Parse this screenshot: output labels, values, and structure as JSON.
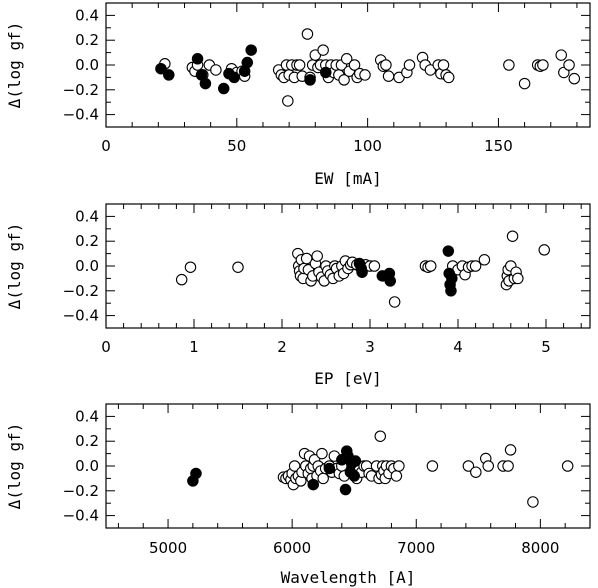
{
  "chart_data": [
    {
      "type": "scatter",
      "xlabel": "EW [mA]",
      "ylabel": "Δ(log gf)",
      "xlim": [
        0,
        185
      ],
      "ylim": [
        -0.5,
        0.5
      ],
      "xticks": [
        0,
        50,
        100,
        150
      ],
      "yticks": [
        -0.4,
        -0.2,
        0.0,
        0.2,
        0.4
      ],
      "ytick_labels": [
        "−0.4",
        "−0.2",
        "0.0",
        "0.2",
        "0.4"
      ],
      "series": [
        {
          "marker": "open",
          "x": [
            22.5,
            33,
            34,
            35,
            37,
            39.5,
            42,
            48,
            50,
            52,
            53,
            66,
            67,
            68,
            69,
            69.5,
            70,
            71,
            72,
            73,
            74,
            75,
            77,
            78,
            79,
            80,
            81,
            82,
            83,
            84,
            85,
            86,
            87,
            88,
            89,
            90,
            91,
            92,
            93,
            95,
            96,
            97,
            99,
            105,
            106,
            107,
            108,
            112,
            115,
            116,
            121,
            122,
            124,
            127,
            128,
            129,
            130,
            131,
            154,
            160,
            165,
            166,
            167,
            174,
            175,
            177,
            179
          ],
          "y": [
            0.01,
            -0.02,
            -0.05,
            0.0,
            -0.08,
            0.0,
            -0.04,
            -0.03,
            -0.06,
            -0.05,
            -0.09,
            -0.04,
            -0.08,
            -0.1,
            0.0,
            -0.29,
            -0.08,
            0.0,
            -0.1,
            0.0,
            0.0,
            -0.09,
            0.25,
            -0.1,
            0.0,
            0.08,
            -0.02,
            0.0,
            0.12,
            0.0,
            -0.1,
            0.0,
            -0.06,
            0.0,
            -0.08,
            0.0,
            -0.12,
            0.05,
            -0.05,
            0.0,
            -0.1,
            -0.07,
            -0.08,
            0.04,
            -0.01,
            0.0,
            -0.09,
            -0.1,
            -0.06,
            0.0,
            0.06,
            0.0,
            -0.04,
            0.0,
            -0.07,
            0.0,
            -0.08,
            -0.1,
            0.0,
            -0.15,
            0.0,
            -0.01,
            0.0,
            0.08,
            -0.06,
            0.0,
            -0.11
          ]
        },
        {
          "marker": "filled",
          "x": [
            21,
            24,
            35,
            36.5,
            38,
            45,
            47,
            49,
            53,
            54,
            55.5,
            78,
            84
          ],
          "y": [
            -0.03,
            -0.08,
            0.05,
            -0.08,
            -0.15,
            -0.19,
            -0.07,
            -0.1,
            -0.05,
            0.02,
            0.12,
            -0.12,
            -0.06
          ]
        }
      ]
    },
    {
      "type": "scatter",
      "xlabel": "EP [eV]",
      "ylabel": "Δ(log gf)",
      "xlim": [
        0,
        5.5
      ],
      "ylim": [
        -0.5,
        0.5
      ],
      "xticks": [
        0,
        1,
        2,
        3,
        4,
        5
      ],
      "yticks": [
        -0.4,
        -0.2,
        0.0,
        0.2,
        0.4
      ],
      "ytick_labels": [
        "−0.4",
        "−0.2",
        "0.0",
        "0.2",
        "0.4"
      ],
      "series": [
        {
          "marker": "open",
          "x": [
            0.86,
            0.96,
            1.5,
            2.18,
            2.19,
            2.2,
            2.21,
            2.22,
            2.24,
            2.25,
            2.28,
            2.3,
            2.33,
            2.35,
            2.38,
            2.4,
            2.42,
            2.45,
            2.48,
            2.5,
            2.52,
            2.55,
            2.58,
            2.6,
            2.62,
            2.65,
            2.68,
            2.7,
            2.72,
            2.75,
            2.78,
            2.8,
            2.85,
            2.95,
            3.0,
            3.05,
            3.28,
            3.63,
            3.66,
            3.69,
            3.94,
            4.0,
            4.05,
            4.08,
            4.12,
            4.16,
            4.2,
            4.3,
            4.55,
            4.56,
            4.57,
            4.58,
            4.6,
            4.62,
            4.64,
            4.66,
            4.68,
            4.98
          ],
          "y": [
            -0.11,
            -0.01,
            -0.01,
            0.1,
            0.0,
            -0.04,
            -0.08,
            0.05,
            -0.1,
            -0.02,
            0.06,
            -0.03,
            -0.12,
            -0.08,
            0.02,
            0.08,
            -0.05,
            -0.09,
            -0.12,
            0.0,
            -0.04,
            -0.07,
            -0.1,
            0.0,
            -0.02,
            -0.08,
            0.0,
            -0.06,
            0.04,
            -0.02,
            0.01,
            0.03,
            0.01,
            0.01,
            0.0,
            0.0,
            -0.29,
            0.0,
            -0.01,
            0.0,
            0.0,
            -0.03,
            0.0,
            -0.07,
            -0.01,
            0.0,
            0.0,
            0.05,
            -0.15,
            -0.08,
            -0.03,
            -0.12,
            0.0,
            0.24,
            -0.1,
            -0.05,
            -0.1,
            0.13
          ]
        },
        {
          "marker": "filled",
          "x": [
            2.88,
            2.9,
            2.91,
            3.14,
            3.22,
            3.23,
            3.89,
            3.9,
            3.91,
            3.92,
            3.93
          ],
          "y": [
            0.02,
            -0.02,
            -0.05,
            -0.08,
            -0.06,
            -0.12,
            0.12,
            -0.06,
            -0.15,
            -0.2,
            -0.1
          ]
        }
      ]
    },
    {
      "type": "scatter",
      "xlabel": "Wavelength [A]",
      "ylabel": "Δ(log gf)",
      "xlim": [
        4500,
        8400
      ],
      "ylim": [
        -0.5,
        0.5
      ],
      "xticks": [
        5000,
        6000,
        7000,
        8000
      ],
      "yticks": [
        -0.4,
        -0.2,
        0.0,
        0.2,
        0.4
      ],
      "ytick_labels": [
        "−0.4",
        "−0.2",
        "0.0",
        "0.2",
        "0.4"
      ],
      "series": [
        {
          "marker": "open",
          "x": [
            5930,
            5950,
            5970,
            5990,
            6000,
            6010,
            6020,
            6030,
            6050,
            6070,
            6080,
            6100,
            6110,
            6130,
            6140,
            6150,
            6160,
            6170,
            6180,
            6200,
            6210,
            6230,
            6240,
            6250,
            6270,
            6300,
            6320,
            6340,
            6360,
            6380,
            6400,
            6420,
            6480,
            6500,
            6520,
            6560,
            6580,
            6600,
            6620,
            6640,
            6680,
            6700,
            6710,
            6720,
            6730,
            6740,
            6750,
            6760,
            6780,
            6800,
            6820,
            6840,
            6860,
            7130,
            7420,
            7480,
            7560,
            7580,
            7700,
            7740,
            7760,
            7940,
            8220
          ],
          "y": [
            -0.09,
            -0.1,
            -0.08,
            -0.11,
            -0.06,
            -0.15,
            0.0,
            -0.1,
            -0.08,
            -0.12,
            -0.05,
            0.1,
            0.0,
            -0.06,
            0.08,
            -0.02,
            -0.1,
            0.0,
            0.05,
            -0.08,
            0.0,
            -0.04,
            0.1,
            -0.1,
            -0.02,
            0.0,
            -0.05,
            0.08,
            -0.02,
            -0.06,
            0.0,
            -0.08,
            -0.04,
            0.0,
            -0.1,
            -0.05,
            0.0,
            0.0,
            -0.06,
            -0.08,
            0.0,
            -0.1,
            0.24,
            -0.07,
            0.0,
            -0.04,
            -0.1,
            0.0,
            -0.06,
            0.0,
            -0.02,
            -0.08,
            0.0,
            0.0,
            0.0,
            -0.05,
            0.06,
            0.0,
            0.0,
            0.0,
            0.13,
            -0.29,
            0.0
          ]
        },
        {
          "marker": "filled",
          "x": [
            5200,
            5225,
            6170,
            6300,
            6400,
            6430,
            6440,
            6450,
            6470,
            6480,
            6500,
            6510
          ],
          "y": [
            -0.12,
            -0.06,
            -0.15,
            -0.02,
            0.05,
            -0.19,
            0.12,
            0.08,
            -0.05,
            0.02,
            -0.08,
            0.04
          ]
        }
      ]
    }
  ]
}
